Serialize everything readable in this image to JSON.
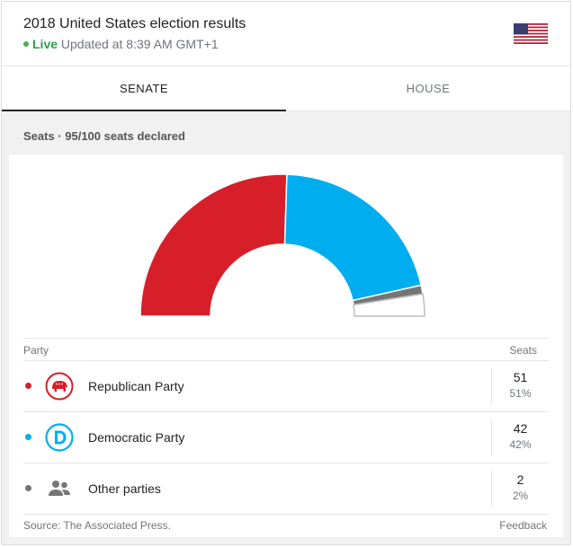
{
  "header": {
    "title": "2018 United States election results",
    "live_label": "Live",
    "updated_text": "Updated at 8:39 AM GMT+1",
    "flag_icon": "us-flag-icon"
  },
  "tabs": [
    {
      "label": "SENATE",
      "active": true
    },
    {
      "label": "HOUSE",
      "active": false
    }
  ],
  "panel": {
    "seats_heading": "Seats · 95/100 seats declared"
  },
  "table": {
    "party_header": "Party",
    "seats_header": "Seats",
    "rows": [
      {
        "party": "Republican Party",
        "seats": "51",
        "percent": "51%",
        "color": "#d71f2a",
        "icon": "republican-elephant-icon"
      },
      {
        "party": "Democratic Party",
        "seats": "42",
        "percent": "42%",
        "color": "#00aeef",
        "icon": "democratic-d-icon"
      },
      {
        "party": "Other parties",
        "seats": "2",
        "percent": "2%",
        "color": "#757575",
        "icon": "people-icon"
      }
    ]
  },
  "chart_data": {
    "type": "pie",
    "total": 100,
    "values": [
      51,
      42,
      2,
      5
    ],
    "categories": [
      "Republican Party",
      "Democratic Party",
      "Other parties",
      "Undeclared"
    ],
    "colors": [
      "#d71f2a",
      "#00aeef",
      "#757575",
      "#ffffff"
    ]
  },
  "footer": {
    "source": "Source: The Associated Press.",
    "feedback": "Feedback"
  }
}
